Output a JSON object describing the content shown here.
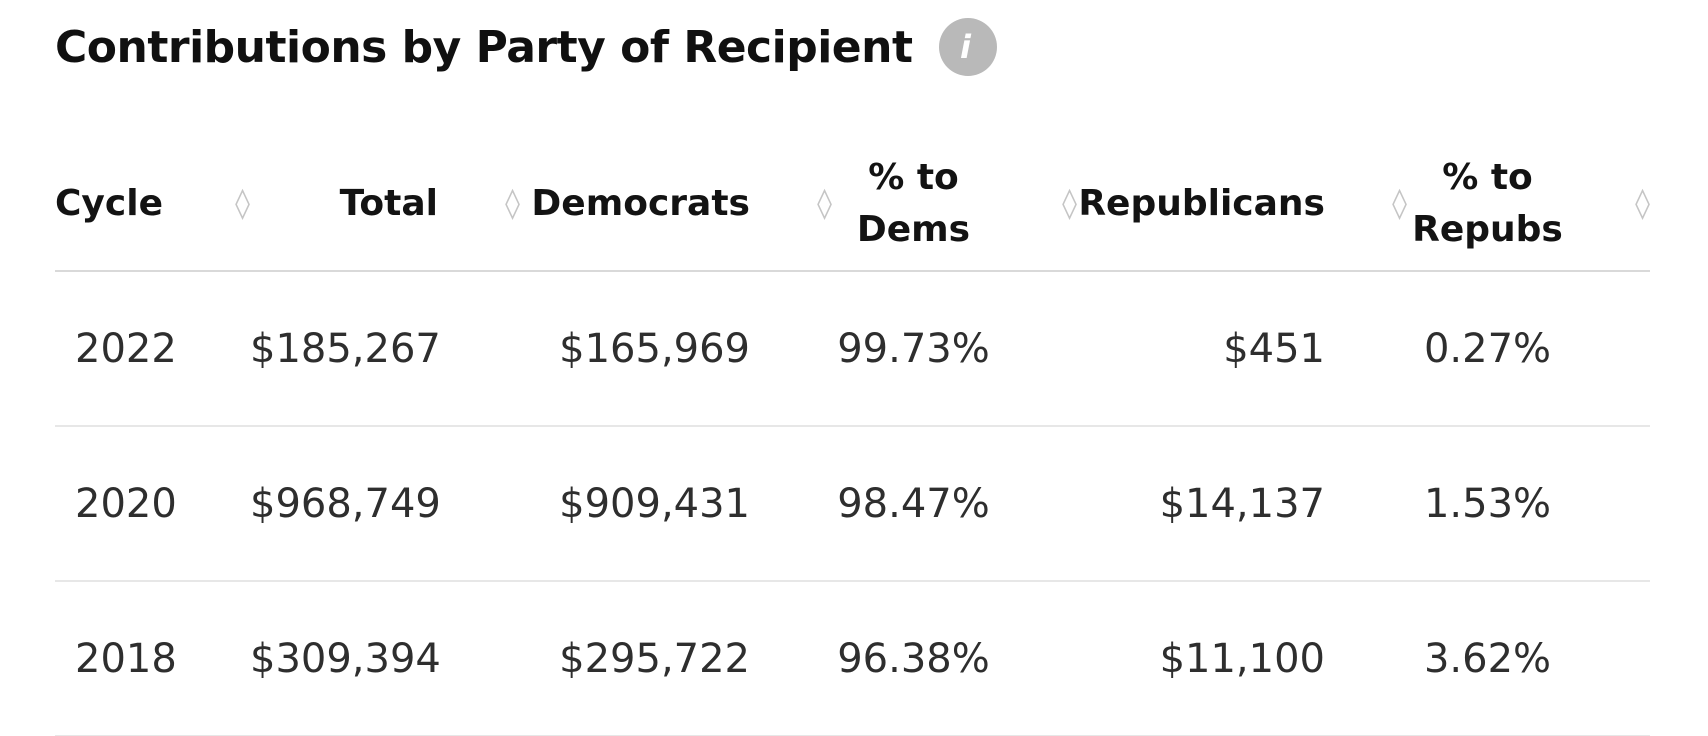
{
  "title": {
    "text": "Contributions by Party of Recipient",
    "info_glyph": "i"
  },
  "icons": {
    "sort_glyph": "◊"
  },
  "colors": {
    "title_text": "#101010",
    "header_text": "#131313",
    "data_text": "#2e2e2e",
    "divider": "#e7e7e7",
    "header_divider": "#d9d9d9",
    "info_icon_bg": "#b9b9b9",
    "sort_icon": "#c5c5c5",
    "background": "#ffffff"
  },
  "chart_data": {
    "type": "table",
    "title": "Contributions by Party of Recipient",
    "columns": [
      "Cycle",
      "Total",
      "Democrats",
      "% to Dems",
      "Republicans",
      "% to Repubs"
    ],
    "rows": [
      {
        "cycle": "2022",
        "total": "$185,267",
        "democrats": "$165,969",
        "pct_dems": "99.73%",
        "republicans": "$451",
        "pct_repubs": "0.27%"
      },
      {
        "cycle": "2020",
        "total": "$968,749",
        "democrats": "$909,431",
        "pct_dems": "98.47%",
        "republicans": "$14,137",
        "pct_repubs": "1.53%"
      },
      {
        "cycle": "2018",
        "total": "$309,394",
        "democrats": "$295,722",
        "pct_dems": "96.38%",
        "republicans": "$11,100",
        "pct_repubs": "3.62%"
      }
    ]
  }
}
